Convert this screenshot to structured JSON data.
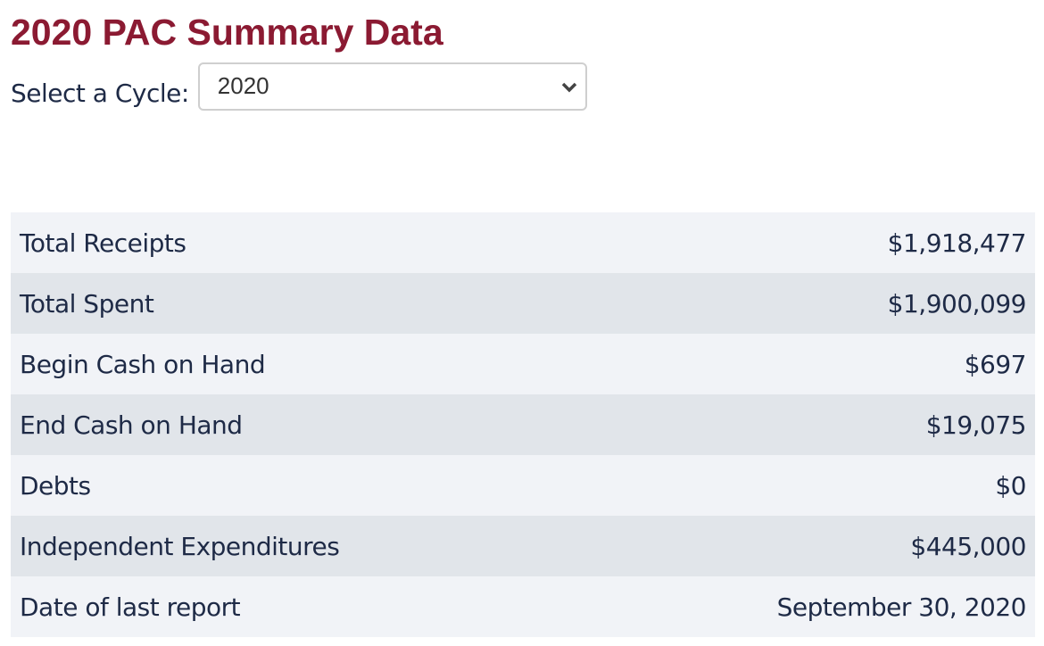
{
  "page": {
    "title": "2020 PAC Summary Data"
  },
  "cycle": {
    "label": "Select a Cycle:",
    "selected": "2020"
  },
  "summary": [
    {
      "label": "Total Receipts",
      "value": "$1,918,477"
    },
    {
      "label": "Total Spent",
      "value": "$1,900,099"
    },
    {
      "label": "Begin Cash on Hand",
      "value": "$697"
    },
    {
      "label": "End Cash on Hand",
      "value": "$19,075"
    },
    {
      "label": "Debts",
      "value": "$0"
    },
    {
      "label": "Independent Expenditures",
      "value": "$445,000"
    },
    {
      "label": "Date of last report",
      "value": "September 30, 2020"
    }
  ]
}
